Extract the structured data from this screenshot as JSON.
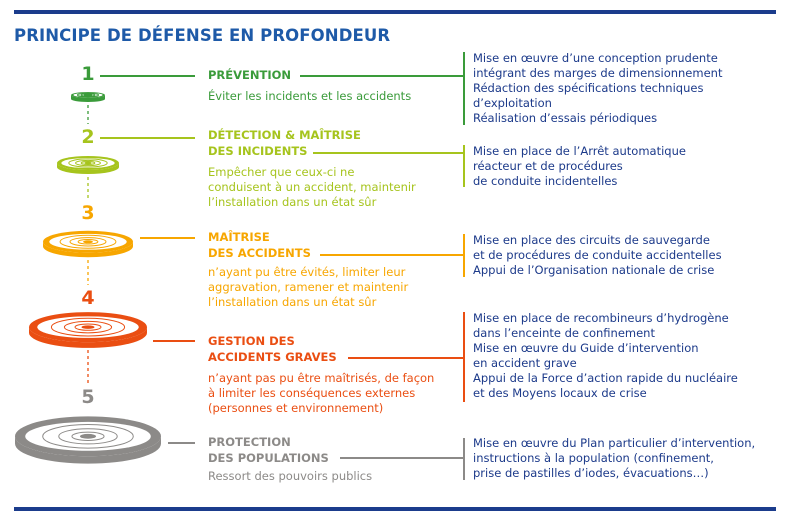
{
  "title": "PRINCIPE DE DÉFENSE EN PROFONDEUR",
  "colors": {
    "title": "#1e5aa8",
    "bars": "#1b3c8c",
    "right_text": "#1c3a8a"
  },
  "levels": [
    {
      "number": "1",
      "title1": "PRÉVENTION",
      "title2": "",
      "color": "#3a9b3a",
      "desc": [
        "Éviter les incidents et les accidents"
      ],
      "actions": [
        "Mise en œuvre d’une conception prudente",
        "intégrant des marges de dimensionnement",
        "Rédaction des spécifications techniques",
        "d’exploitation",
        "Réalisation d’essais périodiques"
      ]
    },
    {
      "number": "2",
      "title1": "DÉTECTION & MAÎTRISE",
      "title2": "DES INCIDENTS",
      "color": "#a6c41d",
      "desc": [
        "Empêcher que ceux-ci ne",
        "conduisent à un accident, maintenir",
        "l’installation dans un état sûr"
      ],
      "actions": [
        "Mise en place de l’Arrêt automatique",
        "réacteur et de procédures",
        "de conduite incidentelles"
      ]
    },
    {
      "number": "3",
      "title1": "MAÎTRISE",
      "title2": "DES ACCIDENTS",
      "color": "#f7a600",
      "desc": [
        "n’ayant pu être évités, limiter leur",
        "aggravation, ramener et maintenir",
        "l’installation dans un état sûr"
      ],
      "actions": [
        "Mise en place des circuits de sauvegarde",
        "et de procédures de conduite accidentelles",
        "Appui de l’Organisation nationale de crise"
      ]
    },
    {
      "number": "4",
      "title1": "GESTION DES",
      "title2": "ACCIDENTS GRAVES",
      "color": "#ea4e12",
      "desc": [
        "n’ayant pas pu être maîtrisés, de façon",
        "à limiter les conséquences externes",
        "(personnes et environnement)"
      ],
      "actions": [
        "Mise en place de recombineurs d’hydrogène",
        "dans l’enceinte de confinement",
        "Mise en œuvre du Guide d’intervention",
        "en accident grave",
        "Appui de la Force d’action rapide du nucléaire",
        "et des Moyens locaux de crise"
      ]
    },
    {
      "number": "5",
      "title1": "PROTECTION",
      "title2": "DES POPULATIONS",
      "color": "#8c8a88",
      "desc": [
        "Ressort des pouvoirs publics"
      ],
      "actions": [
        "Mise en œuvre du Plan particulier d’intervention,",
        "instructions à la population (confinement,",
        "prise de pastilles d’iodes, évacuations…)"
      ]
    }
  ]
}
